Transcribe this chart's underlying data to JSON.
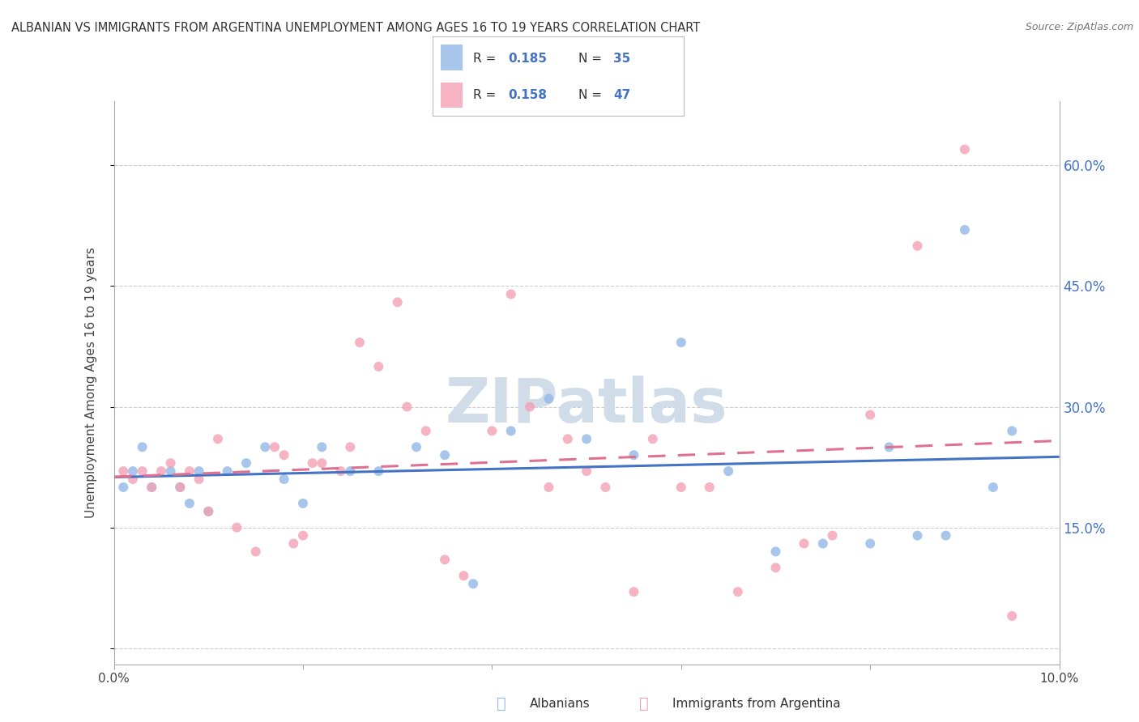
{
  "title": "ALBANIAN VS IMMIGRANTS FROM ARGENTINA UNEMPLOYMENT AMONG AGES 16 TO 19 YEARS CORRELATION CHART",
  "source": "Source: ZipAtlas.com",
  "ylabel": "Unemployment Among Ages 16 to 19 years",
  "xlim": [
    0.0,
    0.1
  ],
  "ylim": [
    -0.02,
    0.68
  ],
  "yticks": [
    0.0,
    0.15,
    0.3,
    0.45,
    0.6
  ],
  "ytick_labels": [
    "",
    "15.0%",
    "30.0%",
    "45.0%",
    "60.0%"
  ],
  "grid_color": "#cccccc",
  "background_color": "#ffffff",
  "albanians_color": "#92b8e8",
  "argentina_color": "#f4a0b5",
  "line_blue_color": "#4472c4",
  "line_pink_color": "#e07090",
  "watermark_color": "#d0dce8",
  "marker_size": 75,
  "albanians_x": [
    0.001,
    0.002,
    0.003,
    0.004,
    0.006,
    0.007,
    0.008,
    0.009,
    0.01,
    0.012,
    0.014,
    0.016,
    0.018,
    0.02,
    0.022,
    0.025,
    0.028,
    0.032,
    0.035,
    0.038,
    0.042,
    0.046,
    0.05,
    0.055,
    0.06,
    0.065,
    0.07,
    0.075,
    0.08,
    0.082,
    0.085,
    0.088,
    0.09,
    0.093,
    0.095
  ],
  "albanians_y": [
    0.2,
    0.22,
    0.25,
    0.2,
    0.22,
    0.2,
    0.18,
    0.22,
    0.17,
    0.22,
    0.23,
    0.25,
    0.21,
    0.18,
    0.25,
    0.22,
    0.22,
    0.25,
    0.24,
    0.08,
    0.27,
    0.31,
    0.26,
    0.24,
    0.38,
    0.22,
    0.12,
    0.13,
    0.13,
    0.25,
    0.14,
    0.14,
    0.52,
    0.2,
    0.27
  ],
  "argentina_x": [
    0.001,
    0.002,
    0.003,
    0.004,
    0.005,
    0.006,
    0.007,
    0.008,
    0.009,
    0.01,
    0.011,
    0.013,
    0.015,
    0.017,
    0.018,
    0.019,
    0.02,
    0.021,
    0.022,
    0.024,
    0.025,
    0.026,
    0.028,
    0.03,
    0.031,
    0.033,
    0.035,
    0.037,
    0.04,
    0.042,
    0.044,
    0.046,
    0.048,
    0.05,
    0.052,
    0.055,
    0.057,
    0.06,
    0.063,
    0.066,
    0.07,
    0.073,
    0.076,
    0.08,
    0.085,
    0.09,
    0.095
  ],
  "argentina_y": [
    0.22,
    0.21,
    0.22,
    0.2,
    0.22,
    0.23,
    0.2,
    0.22,
    0.21,
    0.17,
    0.26,
    0.15,
    0.12,
    0.25,
    0.24,
    0.13,
    0.14,
    0.23,
    0.23,
    0.22,
    0.25,
    0.38,
    0.35,
    0.43,
    0.3,
    0.27,
    0.11,
    0.09,
    0.27,
    0.44,
    0.3,
    0.2,
    0.26,
    0.22,
    0.2,
    0.07,
    0.26,
    0.2,
    0.2,
    0.07,
    0.1,
    0.13,
    0.14,
    0.29,
    0.5,
    0.62,
    0.04
  ]
}
